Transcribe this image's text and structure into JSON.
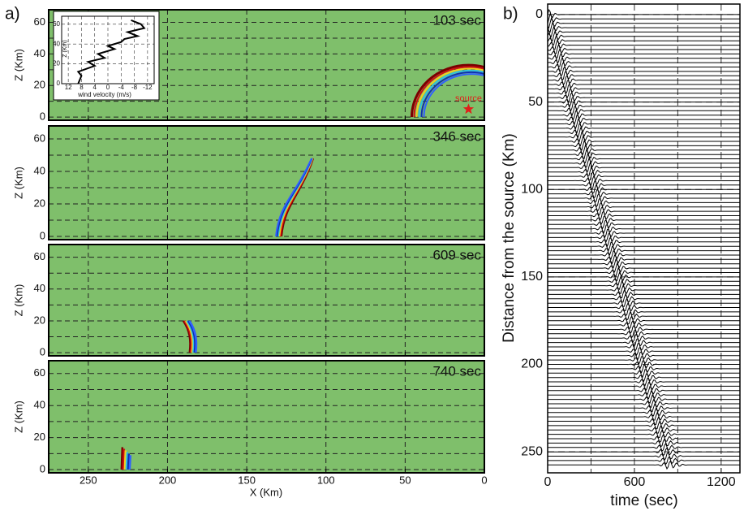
{
  "panel_a": {
    "label": "a)",
    "xlabel": "X (Km)",
    "ylabel": "Z (Km)",
    "xlim": [
      275,
      0
    ],
    "xticks": [
      250,
      200,
      150,
      100,
      50,
      0
    ],
    "ylim": [
      -2,
      68
    ],
    "yticks": [
      0,
      20,
      40,
      60
    ],
    "background": "#7fbf6b",
    "snapshots": [
      "103 sec",
      "346 sec",
      "609 sec",
      "740 sec"
    ],
    "source_label": "source",
    "inset": {
      "xlabel": "wind velocity (m/s)",
      "ylabel": "Z (Km)",
      "xlim": [
        14,
        -14
      ],
      "xticks": [
        12,
        8,
        4,
        0,
        -4,
        -8,
        -12
      ],
      "ylim": [
        0,
        68
      ],
      "yticks": [
        0,
        20,
        40,
        60
      ]
    }
  },
  "panel_b": {
    "label": "b)",
    "xlabel": "time (sec)",
    "ylabel": "Distance from the source (Km)",
    "xlim": [
      0,
      1330
    ],
    "xticks": [
      0,
      600,
      1200
    ],
    "ylim": [
      -6,
      262
    ],
    "yticks": [
      0,
      50,
      100,
      150,
      200,
      250
    ]
  }
}
